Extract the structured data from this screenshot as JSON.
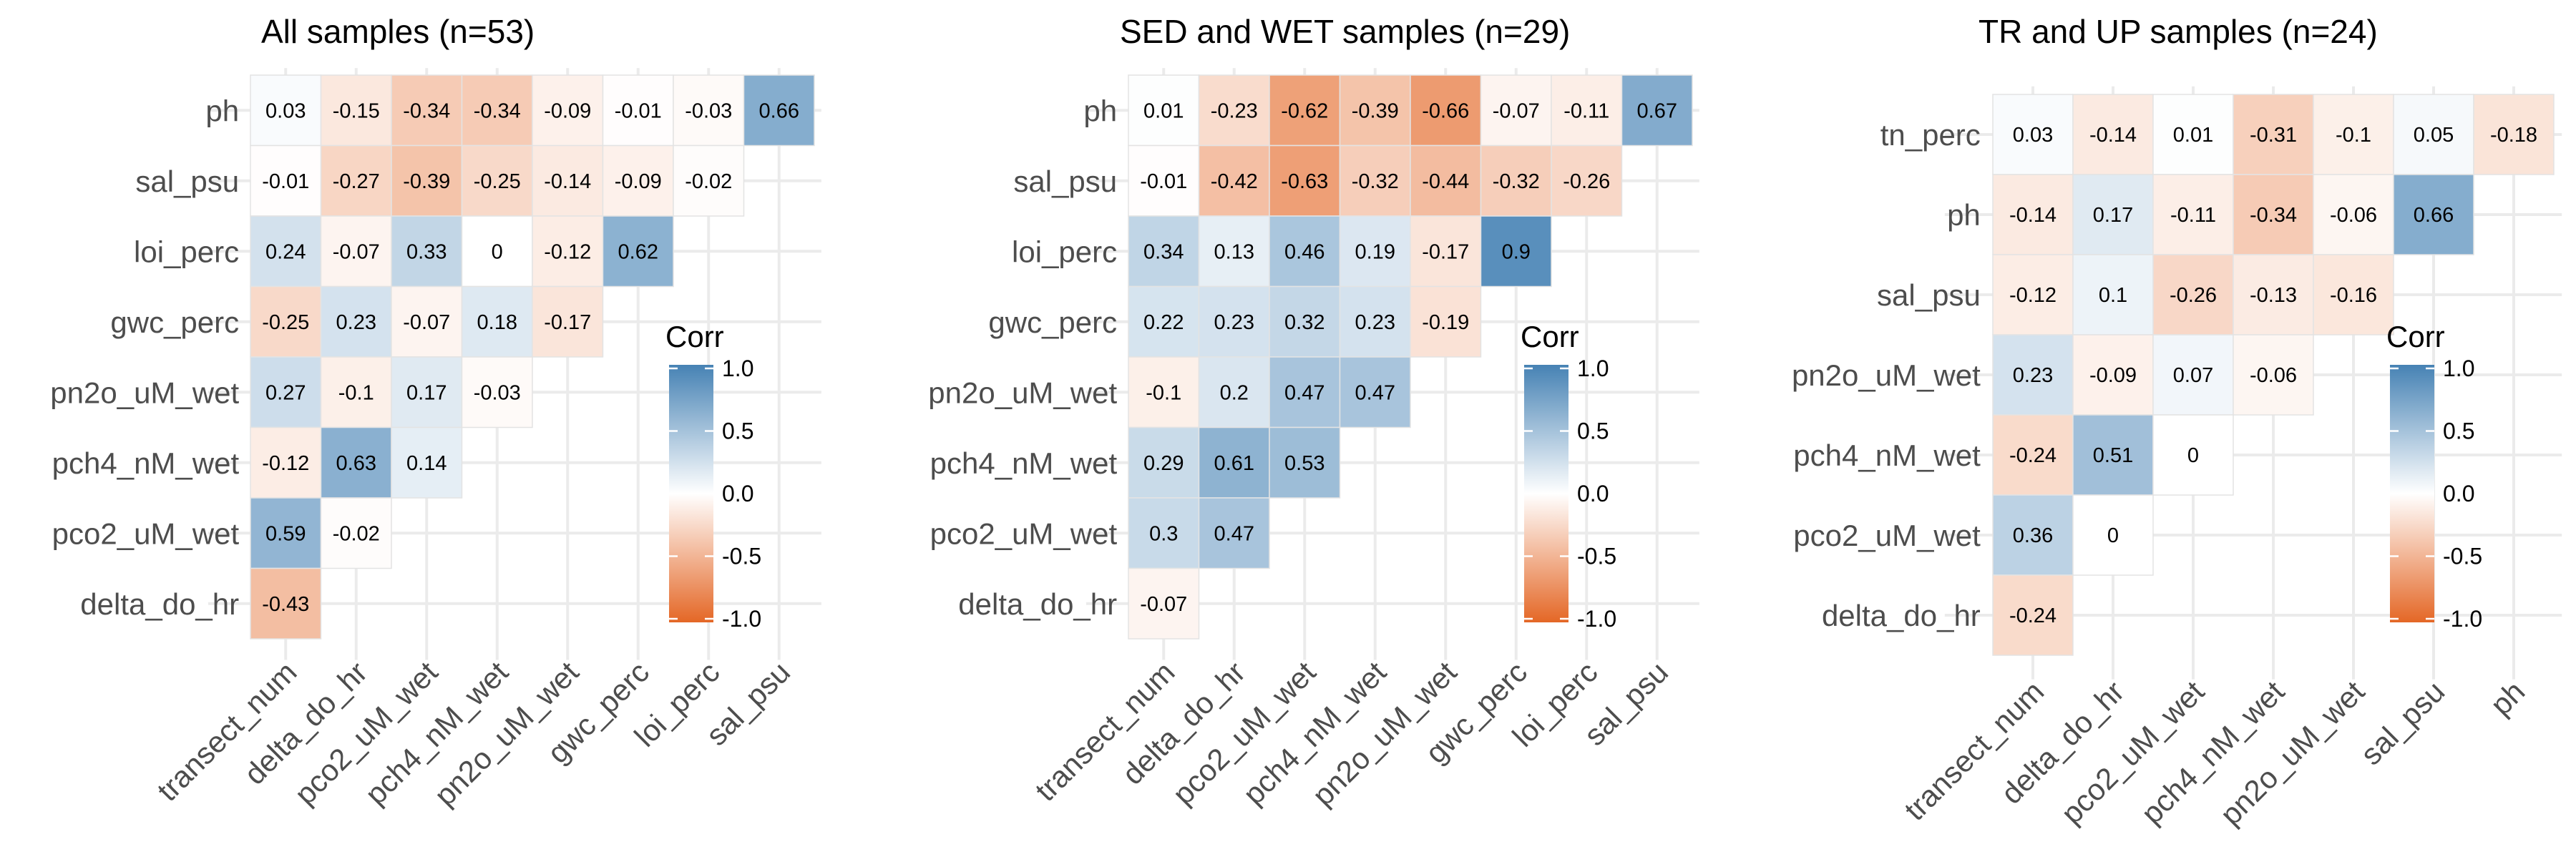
{
  "colors": {
    "positive": "#4682B4",
    "neutral": "#ffffff",
    "negative": "#E46726",
    "grid": "#ebebeb",
    "label": "#4d4d4d"
  },
  "legend": {
    "title": "Corr",
    "ticks": [
      "1.0",
      "0.5",
      "0.0",
      "-0.5",
      "-1.0"
    ]
  },
  "chart_data": [
    {
      "type": "heatmap",
      "title": "All samples (n=53)",
      "rows": [
        "ph",
        "sal_psu",
        "loi_perc",
        "gwc_perc",
        "pn2o_uM_wet",
        "pch4_nM_wet",
        "pco2_uM_wet",
        "delta_do_hr"
      ],
      "cols": [
        "transect_num",
        "delta_do_hr",
        "pco2_uM_wet",
        "pch4_nM_wet",
        "pn2o_uM_wet",
        "gwc_perc",
        "loi_perc",
        "sal_psu"
      ],
      "values": [
        [
          0.03,
          -0.15,
          -0.34,
          -0.34,
          -0.09,
          -0.01,
          -0.03,
          0.66
        ],
        [
          -0.01,
          -0.27,
          -0.39,
          -0.25,
          -0.14,
          -0.09,
          -0.02
        ],
        [
          0.24,
          -0.07,
          0.33,
          0,
          -0.12,
          0.62
        ],
        [
          -0.25,
          0.23,
          -0.07,
          0.18,
          -0.17
        ],
        [
          0.27,
          -0.1,
          0.17,
          -0.03
        ],
        [
          -0.12,
          0.63,
          0.14
        ],
        [
          0.59,
          -0.02
        ],
        [
          -0.43
        ]
      ],
      "labels": [
        [
          "0.03",
          "-0.15",
          "-0.34",
          "-0.34",
          "-0.09",
          "-0.01",
          "-0.03",
          "0.66"
        ],
        [
          "-0.01",
          "-0.27",
          "-0.39",
          "-0.25",
          "-0.14",
          "-0.09",
          "-0.02"
        ],
        [
          "0.24",
          "-0.07",
          "0.33",
          "0",
          "-0.12",
          "0.62"
        ],
        [
          "-0.25",
          "0.23",
          "-0.07",
          "0.18",
          "-0.17"
        ],
        [
          "0.27",
          "-0.1",
          "0.17",
          "-0.03"
        ],
        [
          "-0.12",
          "0.63",
          "0.14"
        ],
        [
          "0.59",
          "-0.02"
        ],
        [
          "-0.43"
        ]
      ],
      "scale": [
        -1,
        1
      ]
    },
    {
      "type": "heatmap",
      "title": "SED and WET samples (n=29)",
      "rows": [
        "ph",
        "sal_psu",
        "loi_perc",
        "gwc_perc",
        "pn2o_uM_wet",
        "pch4_nM_wet",
        "pco2_uM_wet",
        "delta_do_hr"
      ],
      "cols": [
        "transect_num",
        "delta_do_hr",
        "pco2_uM_wet",
        "pch4_nM_wet",
        "pn2o_uM_wet",
        "gwc_perc",
        "loi_perc",
        "sal_psu"
      ],
      "values": [
        [
          0.01,
          -0.23,
          -0.62,
          -0.39,
          -0.66,
          -0.07,
          -0.11,
          0.67
        ],
        [
          -0.01,
          -0.42,
          -0.63,
          -0.32,
          -0.44,
          -0.32,
          -0.26
        ],
        [
          0.34,
          0.13,
          0.46,
          0.19,
          -0.17,
          0.9
        ],
        [
          0.22,
          0.23,
          0.32,
          0.23,
          -0.19
        ],
        [
          -0.1,
          0.2,
          0.47,
          0.47
        ],
        [
          0.29,
          0.61,
          0.53
        ],
        [
          0.3,
          0.47
        ],
        [
          -0.07
        ]
      ],
      "labels": [
        [
          "0.01",
          "-0.23",
          "-0.62",
          "-0.39",
          "-0.66",
          "-0.07",
          "-0.11",
          "0.67"
        ],
        [
          "-0.01",
          "-0.42",
          "-0.63",
          "-0.32",
          "-0.44",
          "-0.32",
          "-0.26"
        ],
        [
          "0.34",
          "0.13",
          "0.46",
          "0.19",
          "-0.17",
          "0.9"
        ],
        [
          "0.22",
          "0.23",
          "0.32",
          "0.23",
          "-0.19"
        ],
        [
          "-0.1",
          "0.2",
          "0.47",
          "0.47"
        ],
        [
          "0.29",
          "0.61",
          "0.53"
        ],
        [
          "0.3",
          "0.47"
        ],
        [
          "-0.07"
        ]
      ],
      "scale": [
        -1,
        1
      ]
    },
    {
      "type": "heatmap",
      "title": "TR and UP samples (n=24)",
      "rows": [
        "tn_perc",
        "ph",
        "sal_psu",
        "pn2o_uM_wet",
        "pch4_nM_wet",
        "pco2_uM_wet",
        "delta_do_hr"
      ],
      "cols": [
        "transect_num",
        "delta_do_hr",
        "pco2_uM_wet",
        "pch4_nM_wet",
        "pn2o_uM_wet",
        "sal_psu",
        "ph"
      ],
      "values": [
        [
          0.03,
          -0.14,
          0.01,
          -0.31,
          -0.1,
          0.05,
          -0.18
        ],
        [
          -0.14,
          0.17,
          -0.11,
          -0.34,
          -0.06,
          0.66
        ],
        [
          -0.12,
          0.1,
          -0.26,
          -0.13,
          -0.16
        ],
        [
          0.23,
          -0.09,
          0.07,
          -0.06
        ],
        [
          -0.24,
          0.51,
          0
        ],
        [
          0.36,
          0
        ],
        [
          -0.24
        ]
      ],
      "labels": [
        [
          "0.03",
          "-0.14",
          "0.01",
          "-0.31",
          "-0.1",
          "0.05",
          "-0.18"
        ],
        [
          "-0.14",
          "0.17",
          "-0.11",
          "-0.34",
          "-0.06",
          "0.66"
        ],
        [
          "-0.12",
          "0.1",
          "-0.26",
          "-0.13",
          "-0.16"
        ],
        [
          "0.23",
          "-0.09",
          "0.07",
          "-0.06"
        ],
        [
          "-0.24",
          "0.51",
          "0"
        ],
        [
          "0.36",
          "0"
        ],
        [
          "-0.24"
        ]
      ],
      "scale": [
        -1,
        1
      ]
    }
  ]
}
